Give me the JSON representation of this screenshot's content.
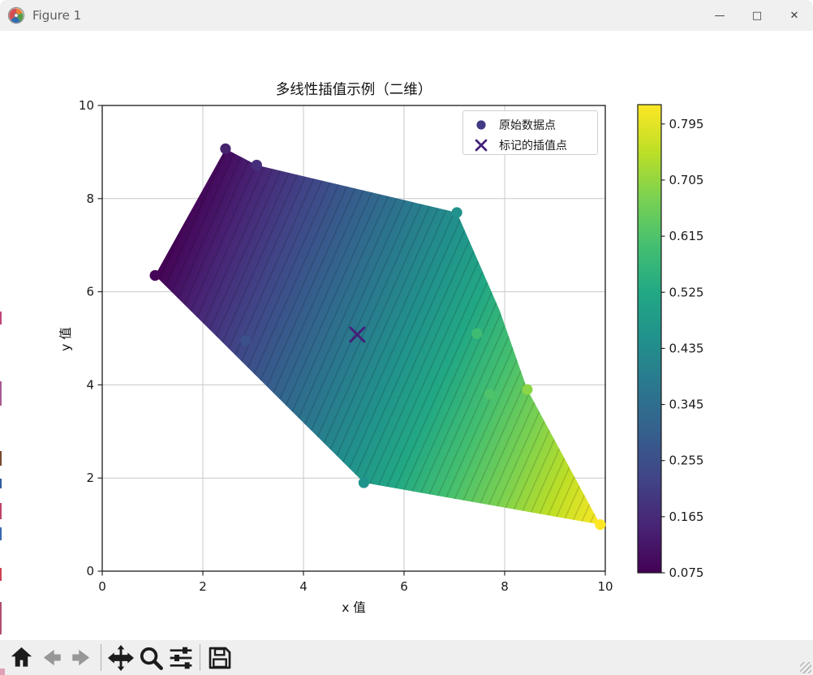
{
  "window": {
    "title": "Figure 1",
    "controls": {
      "minimize": "—",
      "maximize": "□",
      "close": "✕"
    }
  },
  "figure": {
    "title": "多线性插值示例（二维）",
    "xlabel": "x 值",
    "ylabel": "y 值",
    "legend": {
      "items": [
        {
          "marker": "dot-icon",
          "label": "原始数据点"
        },
        {
          "marker": "x-icon",
          "label": "标记的插值点"
        }
      ],
      "dot_color": "#433a85",
      "x_color": "#44207a"
    }
  },
  "chart_data": {
    "type": "filled-contour+scatter",
    "title": "多线性插值示例（二维）",
    "xlabel": "x 值",
    "ylabel": "y 值",
    "xlim": [
      0,
      10
    ],
    "ylim": [
      0,
      10
    ],
    "x_ticks": [
      0,
      2,
      4,
      6,
      8,
      10
    ],
    "y_ticks": [
      0,
      2,
      4,
      6,
      8,
      10
    ],
    "grid": true,
    "colormap": "viridis",
    "viridis_stops": [
      "#440154",
      "#482475",
      "#414487",
      "#355f8d",
      "#2a788e",
      "#21918c",
      "#22a884",
      "#44bf70",
      "#7ad151",
      "#bddf26",
      "#fde725"
    ],
    "colorbar": {
      "vmin": 0.075,
      "vmax": 0.826,
      "ticks": [
        0.795,
        0.705,
        0.615,
        0.525,
        0.435,
        0.345,
        0.255,
        0.165,
        0.075
      ]
    },
    "scatter_points": [
      {
        "x": 1.05,
        "y": 6.35,
        "color": "#450659"
      },
      {
        "x": 2.45,
        "y": 9.07,
        "color": "#46246e"
      },
      {
        "x": 3.07,
        "y": 8.72,
        "color": "#472e7c"
      },
      {
        "x": 2.85,
        "y": 4.95,
        "color": "#3c508b"
      },
      {
        "x": 7.05,
        "y": 7.7,
        "color": "#21918c"
      },
      {
        "x": 5.2,
        "y": 1.9,
        "color": "#1f948c"
      },
      {
        "x": 7.45,
        "y": 5.1,
        "color": "#3fbc73"
      },
      {
        "x": 7.7,
        "y": 3.8,
        "color": "#4ec36b"
      },
      {
        "x": 8.45,
        "y": 3.9,
        "color": "#8bd646"
      },
      {
        "x": 9.9,
        "y": 1.0,
        "color": "#fde725"
      }
    ],
    "interp_marker": {
      "x": 5.07,
      "y": 5.08,
      "color": "#44207a"
    },
    "hull": [
      [
        1.05,
        6.35
      ],
      [
        2.45,
        9.07
      ],
      [
        3.07,
        8.72
      ],
      [
        7.05,
        7.7
      ],
      [
        7.9,
        5.6
      ],
      [
        8.45,
        3.9
      ],
      [
        9.9,
        1.0
      ],
      [
        5.2,
        1.9
      ]
    ],
    "gradient": {
      "dark_at": [
        1.05,
        6.35
      ],
      "bright_at": [
        9.9,
        1.0
      ],
      "angle_deg": 24
    }
  },
  "toolbar": {
    "buttons": [
      {
        "name": "home"
      },
      {
        "name": "back",
        "disabled": true
      },
      {
        "name": "forward",
        "disabled": true
      },
      {
        "name": "pan"
      },
      {
        "name": "zoom-to-rect"
      },
      {
        "name": "configure-subplots"
      },
      {
        "name": "save"
      }
    ]
  }
}
